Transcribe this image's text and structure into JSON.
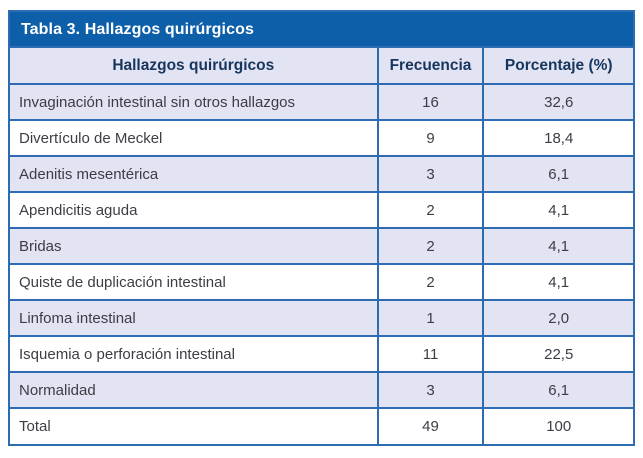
{
  "table": {
    "title": "Tabla 3. Hallazgos quirúrgicos",
    "columns": [
      "Hallazgos quirúrgicos",
      "Frecuencia",
      "Porcentaje (%)"
    ],
    "rows": [
      {
        "label": "Invaginación intestinal sin otros hallazgos",
        "frecuencia": "16",
        "porcentaje": "32,6"
      },
      {
        "label": "Divertículo de Meckel",
        "frecuencia": "9",
        "porcentaje": "18,4"
      },
      {
        "label": "Adenitis mesentérica",
        "frecuencia": "3",
        "porcentaje": "6,1"
      },
      {
        "label": "Apendicitis aguda",
        "frecuencia": "2",
        "porcentaje": "4,1"
      },
      {
        "label": "Bridas",
        "frecuencia": "2",
        "porcentaje": "4,1"
      },
      {
        "label": "Quiste de duplicación intestinal",
        "frecuencia": "2",
        "porcentaje": "4,1"
      },
      {
        "label": "Linfoma intestinal",
        "frecuencia": "1",
        "porcentaje": "2,0"
      },
      {
        "label": "Isquemia o perforación intestinal",
        "frecuencia": "11",
        "porcentaje": "22,5"
      },
      {
        "label": "Normalidad",
        "frecuencia": "3",
        "porcentaje": "6,1"
      },
      {
        "label": "Total",
        "frecuencia": "49",
        "porcentaje": "100"
      }
    ],
    "colors": {
      "title_bar_background": "#0e5fa9",
      "title_text": "#ffffff",
      "border": "#2d6cb3",
      "header_row_background": "#e2e3f3",
      "alt_row_background": "#e2e3f3",
      "header_text": "#17365d",
      "body_text": "#3d3d46"
    }
  },
  "chart_data": {
    "type": "table",
    "title": "Tabla 3. Hallazgos quirúrgicos",
    "columns": [
      "Hallazgos quirúrgicos",
      "Frecuencia",
      "Porcentaje (%)"
    ],
    "rows": [
      [
        "Invaginación intestinal sin otros hallazgos",
        16,
        "32,6"
      ],
      [
        "Divertículo de Meckel",
        9,
        "18,4"
      ],
      [
        "Adenitis mesentérica",
        3,
        "6,1"
      ],
      [
        "Apendicitis aguda",
        2,
        "4,1"
      ],
      [
        "Bridas",
        2,
        "4,1"
      ],
      [
        "Quiste de duplicación intestinal",
        2,
        "4,1"
      ],
      [
        "Linfoma intestinal",
        1,
        "2,0"
      ],
      [
        "Isquemia o perforación intestinal",
        11,
        "22,5"
      ],
      [
        "Normalidad",
        3,
        "6,1"
      ],
      [
        "Total",
        49,
        "100"
      ]
    ]
  }
}
